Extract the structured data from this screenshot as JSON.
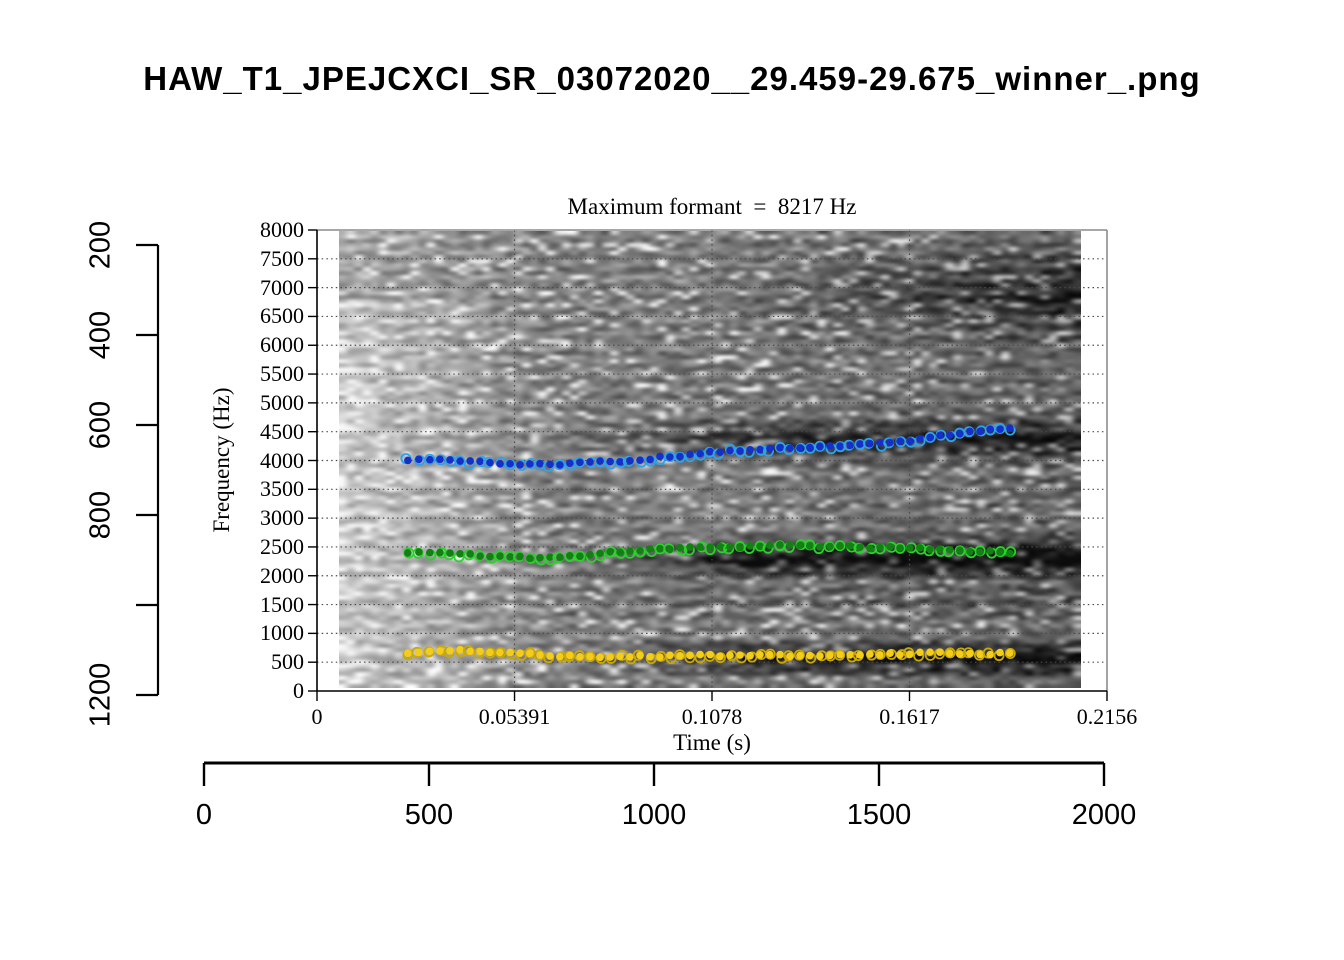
{
  "page": {
    "title": "HAW_T1_JPEJCXCI_SR_03072020__29.459-29.675_winner_.png"
  },
  "chart_data": {
    "type": "scatter",
    "title": "Maximum formant  =  8217 Hz",
    "xlabel": "Time (s)",
    "ylabel": "Frequency (Hz)",
    "xlim": [
      0,
      0.2156
    ],
    "ylim": [
      0,
      8000
    ],
    "x_ticks": [
      0,
      0.05391,
      0.1078,
      0.1617,
      0.2156
    ],
    "x_tick_labels": [
      "0",
      "0.05391",
      "0.1078",
      "0.1617",
      "0.2156"
    ],
    "y_ticks": [
      0,
      500,
      1000,
      1500,
      2000,
      2500,
      3000,
      3500,
      4000,
      4500,
      5000,
      5500,
      6000,
      6500,
      7000,
      7500,
      8000
    ],
    "y_tick_labels": [
      "0",
      "500",
      "1000",
      "1500",
      "2000",
      "2500",
      "3000",
      "3500",
      "4000",
      "4500",
      "5000",
      "5500",
      "6000",
      "6500",
      "7000",
      "7500",
      "8000"
    ],
    "grid": "dotted, horizontal every 500 Hz and vertical at labeled time ticks",
    "legend": "none",
    "background": "grayscale speech spectrogram, 0-8000 Hz",
    "series": [
      {
        "name": "upper-formant-track-blue",
        "marker": "filled dot with open ring",
        "fill_color": "#1430c8",
        "ring_color": "#2fa3e8",
        "points": [
          [
            0.0248,
            4017
          ],
          [
            0.0308,
            4017
          ],
          [
            0.0363,
            4000
          ],
          [
            0.0418,
            3983
          ],
          [
            0.0472,
            3965
          ],
          [
            0.0527,
            3948
          ],
          [
            0.0581,
            3930
          ],
          [
            0.0636,
            3930
          ],
          [
            0.069,
            3948
          ],
          [
            0.0745,
            3965
          ],
          [
            0.08,
            3983
          ],
          [
            0.0854,
            4000
          ],
          [
            0.0909,
            4035
          ],
          [
            0.0963,
            4070
          ],
          [
            0.1018,
            4104
          ],
          [
            0.1073,
            4139
          ],
          [
            0.1127,
            4174
          ],
          [
            0.1182,
            4191
          ],
          [
            0.1236,
            4209
          ],
          [
            0.1291,
            4226
          ],
          [
            0.1345,
            4243
          ],
          [
            0.14,
            4243
          ],
          [
            0.1455,
            4261
          ],
          [
            0.1509,
            4278
          ],
          [
            0.1564,
            4313
          ],
          [
            0.1618,
            4348
          ],
          [
            0.1673,
            4400
          ],
          [
            0.1727,
            4452
          ],
          [
            0.1782,
            4504
          ],
          [
            0.1837,
            4539
          ],
          [
            0.1891,
            4574
          ]
        ]
      },
      {
        "name": "middle-formant-track-green",
        "marker": "filled dot with open ring",
        "fill_color": "#128012",
        "ring_color": "#2bd22b",
        "points": [
          [
            0.0248,
            2400
          ],
          [
            0.0308,
            2400
          ],
          [
            0.0363,
            2383
          ],
          [
            0.0418,
            2365
          ],
          [
            0.0472,
            2348
          ],
          [
            0.0527,
            2330
          ],
          [
            0.0581,
            2313
          ],
          [
            0.0636,
            2313
          ],
          [
            0.069,
            2330
          ],
          [
            0.0745,
            2365
          ],
          [
            0.08,
            2400
          ],
          [
            0.0854,
            2435
          ],
          [
            0.0909,
            2452
          ],
          [
            0.0963,
            2470
          ],
          [
            0.1018,
            2487
          ],
          [
            0.1073,
            2487
          ],
          [
            0.1127,
            2504
          ],
          [
            0.1182,
            2504
          ],
          [
            0.1236,
            2522
          ],
          [
            0.1291,
            2522
          ],
          [
            0.1345,
            2522
          ],
          [
            0.14,
            2504
          ],
          [
            0.1455,
            2504
          ],
          [
            0.1509,
            2487
          ],
          [
            0.1564,
            2487
          ],
          [
            0.1618,
            2470
          ],
          [
            0.1673,
            2470
          ],
          [
            0.1727,
            2452
          ],
          [
            0.1782,
            2435
          ],
          [
            0.1837,
            2417
          ],
          [
            0.1891,
            2400
          ]
        ]
      },
      {
        "name": "lower-formant-track-yellow",
        "marker": "filled dot with open ring",
        "fill_color": "#f3cd1a",
        "ring_color": "#c9a807",
        "points": [
          [
            0.0248,
            660
          ],
          [
            0.0308,
            700
          ],
          [
            0.0363,
            710
          ],
          [
            0.0418,
            700
          ],
          [
            0.0472,
            680
          ],
          [
            0.0527,
            665
          ],
          [
            0.0581,
            650
          ],
          [
            0.0636,
            620
          ],
          [
            0.069,
            600
          ],
          [
            0.0745,
            595
          ],
          [
            0.08,
            600
          ],
          [
            0.0854,
            605
          ],
          [
            0.0909,
            600
          ],
          [
            0.0963,
            610
          ],
          [
            0.1018,
            615
          ],
          [
            0.1073,
            615
          ],
          [
            0.1127,
            610
          ],
          [
            0.1182,
            615
          ],
          [
            0.1236,
            620
          ],
          [
            0.1291,
            615
          ],
          [
            0.1345,
            610
          ],
          [
            0.14,
            615
          ],
          [
            0.1455,
            620
          ],
          [
            0.1509,
            625
          ],
          [
            0.1564,
            640
          ],
          [
            0.1618,
            650
          ],
          [
            0.1673,
            660
          ],
          [
            0.1727,
            665
          ],
          [
            0.1782,
            655
          ],
          [
            0.1837,
            645
          ],
          [
            0.1891,
            655
          ]
        ]
      }
    ]
  },
  "outer_axes": {
    "left_ruler": {
      "min": 200,
      "max": 1200,
      "tick_values": [
        200,
        400,
        600,
        800,
        1000,
        1200
      ],
      "tick_labels": [
        "200",
        "400",
        "600",
        "800",
        "",
        "1200"
      ]
    },
    "bottom_ruler": {
      "min": 0,
      "max": 2000,
      "tick_values": [
        0,
        500,
        1000,
        1500,
        2000
      ],
      "tick_labels": [
        "0",
        "500",
        "1000",
        "1500",
        "2000"
      ]
    }
  },
  "colors": {
    "axis": "#000000",
    "box_top_right": "#8a8a8a",
    "gridline": "#4a4a4a"
  }
}
